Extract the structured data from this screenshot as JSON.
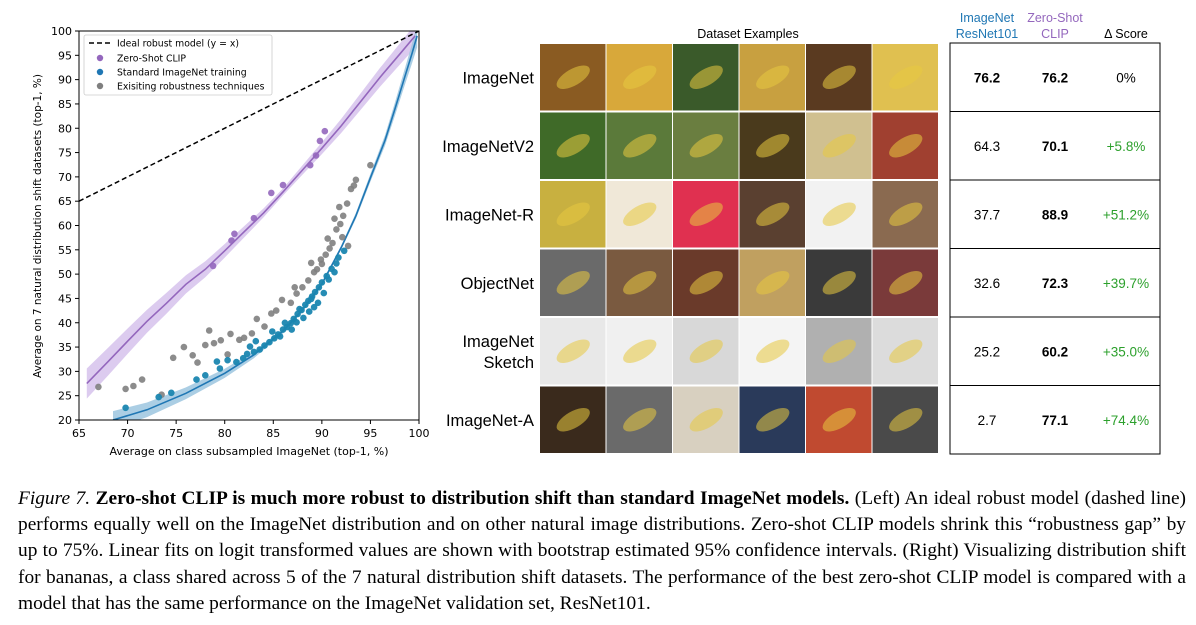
{
  "colors": {
    "ideal": "#000000",
    "clip": "#9467bd",
    "clip_band": "#d6c2ec",
    "standard": "#1f77b4",
    "standard_scatter": "#1a86b0",
    "robust": "#7f7f7f",
    "green": "#2ca02c",
    "resnet_header": "#1f77b4",
    "clip_header": "#9467bd"
  },
  "chart_data": {
    "type": "scatter",
    "xlabel": "Average on class subsampled ImageNet (top-1, %)",
    "ylabel": "Average on 7 natural distribution shift datasets (top-1, %)",
    "xlim": [
      65,
      100
    ],
    "ylim": [
      20,
      100
    ],
    "xticks": [
      65,
      70,
      75,
      80,
      85,
      90,
      95,
      100
    ],
    "yticks": [
      20,
      25,
      30,
      35,
      40,
      45,
      50,
      55,
      60,
      65,
      70,
      75,
      80,
      85,
      90,
      95,
      100
    ],
    "legend_position": "top-left",
    "grid": false,
    "legend": [
      {
        "label": "Ideal robust model (y = x)",
        "marker": "dashed-line"
      },
      {
        "label": "Zero-Shot CLIP",
        "marker": "dot",
        "color": "#9467bd"
      },
      {
        "label": "Standard ImageNet training",
        "marker": "dot",
        "color": "#1f77b4"
      },
      {
        "label": "Exisiting robustness techniques",
        "marker": "dot",
        "color": "#7f7f7f"
      }
    ],
    "series": [
      {
        "name": "Zero-Shot CLIP",
        "points": [
          [
            78.8,
            51.7
          ],
          [
            80.7,
            56.9
          ],
          [
            81.0,
            58.3
          ],
          [
            83.0,
            61.5
          ],
          [
            84.8,
            66.7
          ],
          [
            86.0,
            68.3
          ],
          [
            88.8,
            72.4
          ],
          [
            89.4,
            74.4
          ],
          [
            89.8,
            77.4
          ],
          [
            90.3,
            79.4
          ]
        ]
      },
      {
        "name": "Standard ImageNet training",
        "points": [
          [
            69.8,
            22.5
          ],
          [
            73.2,
            24.7
          ],
          [
            74.5,
            25.6
          ],
          [
            77.1,
            28.3
          ],
          [
            78.0,
            29.2
          ],
          [
            79.5,
            30.6
          ],
          [
            81.2,
            31.9
          ],
          [
            81.9,
            32.7
          ],
          [
            82.3,
            33.6
          ],
          [
            83.0,
            34.0
          ],
          [
            83.6,
            34.5
          ],
          [
            84.1,
            35.3
          ],
          [
            84.6,
            36.0
          ],
          [
            85.1,
            36.8
          ],
          [
            85.5,
            37.6
          ],
          [
            86.0,
            38.6
          ],
          [
            86.4,
            39.1
          ],
          [
            86.8,
            39.9
          ],
          [
            87.1,
            40.8
          ],
          [
            87.5,
            41.8
          ],
          [
            87.9,
            42.6
          ],
          [
            88.3,
            43.7
          ],
          [
            88.6,
            44.5
          ],
          [
            89.0,
            45.4
          ],
          [
            89.3,
            46.3
          ],
          [
            89.7,
            47.3
          ],
          [
            90.0,
            48.3
          ],
          [
            90.5,
            49.6
          ],
          [
            91.0,
            51.1
          ],
          [
            91.5,
            52.2
          ],
          [
            92.3,
            54.8
          ],
          [
            86.2,
            40.0
          ],
          [
            87.4,
            40.1
          ],
          [
            88.7,
            42.3
          ],
          [
            89.6,
            44.1
          ],
          [
            84.9,
            38.2
          ],
          [
            85.7,
            37.2
          ],
          [
            83.2,
            36.2
          ],
          [
            88.1,
            41.0
          ],
          [
            89.2,
            43.2
          ],
          [
            90.7,
            48.9
          ],
          [
            91.3,
            50.4
          ],
          [
            86.9,
            38.6
          ],
          [
            87.7,
            42.8
          ],
          [
            80.3,
            32.3
          ],
          [
            79.2,
            32.0
          ],
          [
            82.6,
            35.1
          ],
          [
            88.9,
            44.9
          ],
          [
            90.2,
            46.1
          ],
          [
            91.7,
            53.4
          ]
        ]
      },
      {
        "name": "Exisiting robustness techniques",
        "points": [
          [
            67.0,
            26.8
          ],
          [
            69.8,
            26.4
          ],
          [
            70.6,
            27.0
          ],
          [
            71.5,
            28.3
          ],
          [
            73.5,
            25.2
          ],
          [
            74.7,
            32.8
          ],
          [
            75.8,
            35.0
          ],
          [
            76.7,
            33.3
          ],
          [
            77.2,
            31.8
          ],
          [
            78.0,
            35.4
          ],
          [
            78.4,
            38.4
          ],
          [
            78.9,
            35.8
          ],
          [
            79.6,
            36.4
          ],
          [
            80.3,
            33.5
          ],
          [
            80.6,
            37.7
          ],
          [
            81.5,
            36.5
          ],
          [
            82.0,
            36.9
          ],
          [
            82.8,
            37.8
          ],
          [
            83.3,
            40.8
          ],
          [
            84.1,
            39.2
          ],
          [
            84.8,
            41.9
          ],
          [
            85.3,
            42.5
          ],
          [
            85.9,
            44.7
          ],
          [
            86.8,
            44.1
          ],
          [
            87.4,
            46.0
          ],
          [
            88.0,
            47.3
          ],
          [
            88.6,
            48.7
          ],
          [
            89.2,
            50.4
          ],
          [
            89.5,
            51.0
          ],
          [
            90.0,
            52.1
          ],
          [
            90.4,
            54.0
          ],
          [
            90.6,
            57.3
          ],
          [
            91.1,
            56.4
          ],
          [
            91.5,
            59.2
          ],
          [
            91.9,
            60.3
          ],
          [
            92.2,
            62.0
          ],
          [
            92.6,
            64.5
          ],
          [
            93.0,
            67.5
          ],
          [
            93.3,
            68.2
          ],
          [
            93.5,
            69.4
          ],
          [
            95.0,
            72.4
          ],
          [
            92.1,
            57.6
          ],
          [
            91.3,
            61.4
          ],
          [
            90.8,
            55.3
          ],
          [
            89.9,
            53.0
          ],
          [
            88.9,
            52.3
          ],
          [
            92.7,
            55.8
          ],
          [
            91.8,
            63.8
          ],
          [
            87.2,
            47.3
          ]
        ]
      }
    ],
    "curves": {
      "clip_fit": {
        "x": [
          65.8,
          68,
          70,
          72,
          74,
          76,
          78,
          80,
          82,
          84,
          86,
          88,
          90,
          92,
          94,
          96,
          98,
          99.6
        ],
        "y": [
          27.5,
          32.0,
          36.2,
          40.3,
          44.0,
          47.9,
          51.0,
          54.8,
          58.7,
          62.6,
          66.9,
          71.4,
          75.9,
          80.5,
          85.5,
          90.5,
          95.2,
          99.0
        ]
      },
      "standard_fit": {
        "x": [
          68.5,
          72,
          76,
          80,
          83,
          86,
          88,
          90,
          92,
          93.5,
          95,
          96.5,
          97.5,
          98.5,
          99.3,
          99.8
        ],
        "y": [
          20.0,
          22.1,
          25.5,
          29.6,
          33.4,
          38.3,
          42.6,
          48.0,
          55.5,
          62.0,
          69.8,
          77.5,
          83.8,
          90.3,
          95.5,
          99.0
        ]
      },
      "ideal": {
        "x": [
          65,
          100
        ],
        "y": [
          65,
          100
        ]
      }
    }
  },
  "right": {
    "dataset_examples_label": "Dataset Examples",
    "resnet_header_line1": "ImageNet",
    "resnet_header_line2": "ResNet101",
    "clip_header_line1": "Zero-Shot",
    "clip_header_line2": "CLIP",
    "delta_header": "Δ Score",
    "rows": [
      {
        "name_lines": [
          "ImageNet"
        ],
        "resnet": "76.2",
        "clip": "76.2",
        "delta": "0%",
        "delta_color": "#000000",
        "resnet_bold": true,
        "tiles": [
          "#8a5b22",
          "#d8a83a",
          "#3a5a2a",
          "#c8a040",
          "#5a3a20",
          "#e0c050"
        ]
      },
      {
        "name_lines": [
          "ImageNetV2"
        ],
        "resnet": "64.3",
        "clip": "70.1",
        "delta": "+5.8%",
        "delta_color": "#2ca02c",
        "resnet_bold": false,
        "tiles": [
          "#3f6a28",
          "#5b7a3a",
          "#6a7e40",
          "#4a3a1c",
          "#d0c090",
          "#a04030"
        ]
      },
      {
        "name_lines": [
          "ImageNet-R"
        ],
        "resnet": "37.7",
        "clip": "88.9",
        "delta": "+51.2%",
        "delta_color": "#2ca02c",
        "resnet_bold": false,
        "tiles": [
          "#c8b040",
          "#f0e8d8",
          "#e03050",
          "#5a4030",
          "#f2f2f2",
          "#8a6a50"
        ]
      },
      {
        "name_lines": [
          "ObjectNet"
        ],
        "resnet": "32.6",
        "clip": "72.3",
        "delta": "+39.7%",
        "delta_color": "#2ca02c",
        "resnet_bold": false,
        "tiles": [
          "#6a6a6a",
          "#7a5a40",
          "#6a3a2a",
          "#c0a060",
          "#3a3a3a",
          "#7a3a3a"
        ]
      },
      {
        "name_lines": [
          "ImageNet",
          "Sketch"
        ],
        "resnet": "25.2",
        "clip": "60.2",
        "delta": "+35.0%",
        "delta_color": "#2ca02c",
        "resnet_bold": false,
        "tiles": [
          "#e8e8e8",
          "#f0f0f0",
          "#d8d8d8",
          "#f4f4f4",
          "#b0b0b0",
          "#dcdcdc"
        ]
      },
      {
        "name_lines": [
          "ImageNet-A"
        ],
        "resnet": "2.7",
        "clip": "77.1",
        "delta": "+74.4%",
        "delta_color": "#2ca02c",
        "resnet_bold": false,
        "tiles": [
          "#3a2a1c",
          "#6a6a6a",
          "#d8d0c0",
          "#2a3a5a",
          "#c04a30",
          "#4a4a4a"
        ]
      }
    ]
  },
  "caption": {
    "figure_label": "Figure 7.",
    "title": "Zero-shot CLIP is much more robust to distribution shift than standard ImageNet models.",
    "body": "(Left) An ideal robust model (dashed line) performs equally well on the ImageNet distribution and on other natural image distributions. Zero-shot CLIP models shrink this “robustness gap” by up to 75%. Linear fits on logit transformed values are shown with bootstrap estimated 95% confidence intervals. (Right) Visualizing distribution shift for bananas, a class shared across 5 of the 7 natural distribution shift datasets. The performance of the best zero-shot CLIP model is compared with a model that has the same performance on the ImageNet validation set, ResNet101."
  }
}
